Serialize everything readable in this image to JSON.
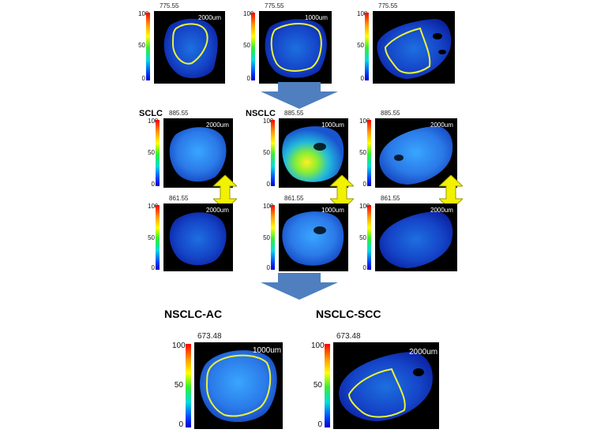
{
  "colorbar_ticks": [
    "100",
    "50",
    "0"
  ],
  "row1": [
    {
      "mz": "775.55",
      "scale": "2000um"
    },
    {
      "mz": "775.55",
      "scale": "1000um"
    },
    {
      "mz": "775.55",
      "scale": ""
    }
  ],
  "row2": [
    {
      "mz": "885.55",
      "scale": "2000um"
    },
    {
      "mz": "885.55",
      "scale": "1000um"
    },
    {
      "mz": "885.55",
      "scale": "2000um"
    }
  ],
  "row3": [
    {
      "mz": "861.55",
      "scale": "2000um"
    },
    {
      "mz": "861.55",
      "scale": "1000um"
    },
    {
      "mz": "861.55",
      "scale": "2000um"
    }
  ],
  "row4": [
    {
      "mz": "673.48",
      "scale": "1000um"
    },
    {
      "mz": "673.48",
      "scale": "2000um"
    }
  ],
  "labels": {
    "sclc": "SCLC",
    "nsclc": "NSCLC",
    "nsclc_ac": "NSCLC-AC",
    "nsclc_scc": "NSCLC-SCC"
  },
  "colors": {
    "arrow_blue": "#4f7fbf",
    "arrow_yellow": "#f2f200",
    "roi_outline": "#e8f23a"
  }
}
